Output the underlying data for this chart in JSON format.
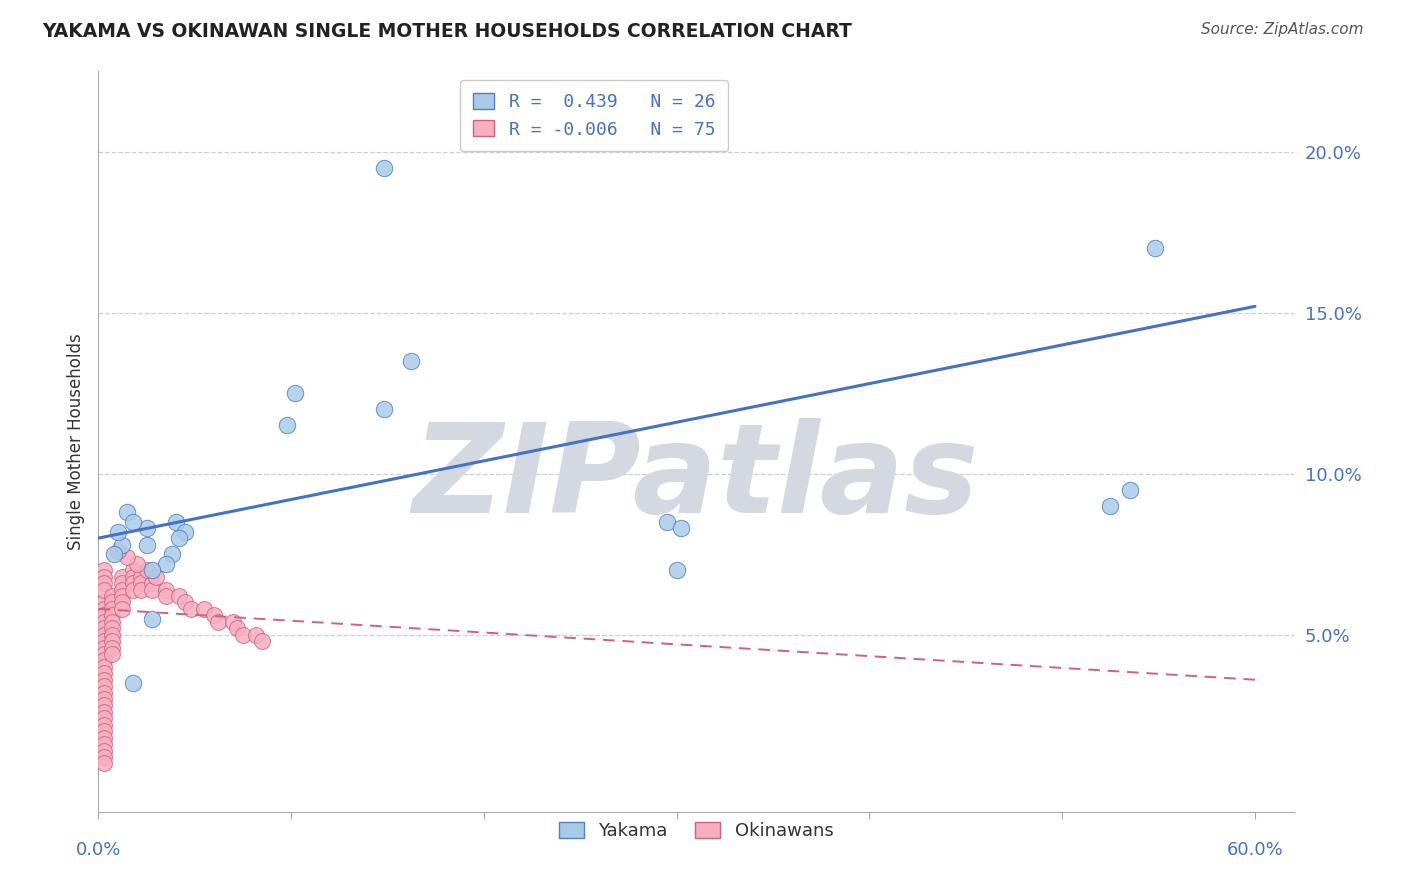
{
  "title": "YAKAMA VS OKINAWAN SINGLE MOTHER HOUSEHOLDS CORRELATION CHART",
  "source": "Source: ZipAtlas.com",
  "ylabel": "Single Mother Households",
  "xlim": [
    0.0,
    0.62
  ],
  "ylim": [
    -0.005,
    0.225
  ],
  "yticks": [
    0.0,
    0.05,
    0.1,
    0.15,
    0.2
  ],
  "ytick_labels": [
    "",
    "5.0%",
    "10.0%",
    "15.0%",
    "20.0%"
  ],
  "blue_color": "#a8cce8",
  "blue_edge_color": "#5080c0",
  "pink_color": "#f5b0c0",
  "pink_edge_color": "#d06080",
  "blue_line_color": "#4472c4",
  "pink_line_color": "#d06080",
  "axis_label_color": "#4472c4",
  "title_color": "#222222",
  "grid_color": "#c8cdd8",
  "background_color": "#ffffff",
  "watermark": "ZIPatlas",
  "watermark_color": "#d4d8e0",
  "yakama_x": [
    0.015,
    0.025,
    0.025,
    0.04,
    0.045,
    0.042,
    0.038,
    0.035,
    0.028,
    0.018,
    0.012,
    0.01,
    0.008,
    0.148,
    0.295,
    0.302,
    0.102,
    0.098,
    0.3,
    0.525,
    0.535,
    0.148,
    0.162,
    0.548,
    0.018,
    0.028
  ],
  "yakama_y": [
    0.088,
    0.083,
    0.078,
    0.085,
    0.082,
    0.08,
    0.075,
    0.072,
    0.07,
    0.085,
    0.078,
    0.082,
    0.075,
    0.12,
    0.085,
    0.083,
    0.125,
    0.115,
    0.07,
    0.09,
    0.095,
    0.195,
    0.135,
    0.17,
    0.035,
    0.055
  ],
  "okinawan_x": [
    0.003,
    0.003,
    0.003,
    0.003,
    0.003,
    0.003,
    0.003,
    0.003,
    0.003,
    0.003,
    0.003,
    0.003,
    0.003,
    0.003,
    0.003,
    0.003,
    0.003,
    0.003,
    0.003,
    0.003,
    0.003,
    0.003,
    0.003,
    0.003,
    0.003,
    0.003,
    0.003,
    0.003,
    0.003,
    0.003,
    0.007,
    0.007,
    0.007,
    0.007,
    0.007,
    0.007,
    0.007,
    0.007,
    0.007,
    0.007,
    0.012,
    0.012,
    0.012,
    0.012,
    0.012,
    0.012,
    0.018,
    0.018,
    0.018,
    0.018,
    0.022,
    0.022,
    0.022,
    0.028,
    0.028,
    0.035,
    0.035,
    0.042,
    0.045,
    0.048,
    0.055,
    0.06,
    0.062,
    0.07,
    0.072,
    0.075,
    0.082,
    0.085,
    0.025,
    0.03,
    0.02,
    0.015,
    0.01
  ],
  "okinawan_y": [
    0.06,
    0.058,
    0.056,
    0.054,
    0.052,
    0.05,
    0.048,
    0.046,
    0.044,
    0.042,
    0.04,
    0.038,
    0.036,
    0.034,
    0.032,
    0.03,
    0.028,
    0.026,
    0.024,
    0.022,
    0.02,
    0.018,
    0.016,
    0.014,
    0.012,
    0.01,
    0.07,
    0.068,
    0.066,
    0.064,
    0.062,
    0.06,
    0.058,
    0.056,
    0.054,
    0.052,
    0.05,
    0.048,
    0.046,
    0.044,
    0.068,
    0.066,
    0.064,
    0.062,
    0.06,
    0.058,
    0.07,
    0.068,
    0.066,
    0.064,
    0.068,
    0.066,
    0.064,
    0.066,
    0.064,
    0.064,
    0.062,
    0.062,
    0.06,
    0.058,
    0.058,
    0.056,
    0.054,
    0.054,
    0.052,
    0.05,
    0.05,
    0.048,
    0.07,
    0.068,
    0.072,
    0.074,
    0.076
  ],
  "blue_trend_x": [
    0.0,
    0.6
  ],
  "blue_trend_y": [
    0.08,
    0.152
  ],
  "pink_trend_x": [
    0.0,
    0.6
  ],
  "pink_trend_y": [
    0.058,
    0.036
  ]
}
